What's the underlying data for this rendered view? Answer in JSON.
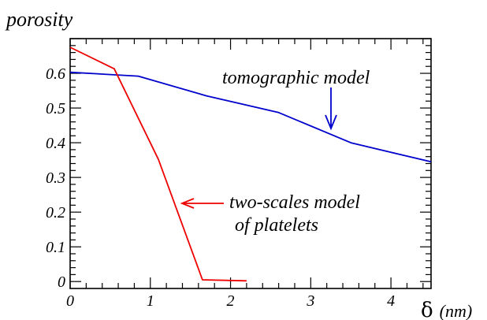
{
  "chart_data": {
    "type": "line",
    "ylabel": "porosity",
    "xlabel_symbol": "δ",
    "xlabel_unit": "(nm)",
    "xlim": [
      0,
      4.5
    ],
    "ylim": [
      -0.02,
      0.7
    ],
    "x_ticks": [
      0,
      1,
      2,
      3,
      4
    ],
    "x_tick_labels": [
      "0",
      "1",
      "2",
      "3",
      "4"
    ],
    "y_ticks": [
      0,
      0.1,
      0.2,
      0.3,
      0.4,
      0.5,
      0.6
    ],
    "y_tick_labels": [
      "0",
      "0.1",
      "0.2",
      "0.3",
      "0.4",
      "0.5",
      "0.6"
    ],
    "grid": false,
    "series": [
      {
        "name": "tomographic model",
        "color": "#0000cc",
        "x": [
          0,
          0.85,
          1.7,
          2.6,
          3.5,
          4.5
        ],
        "y": [
          0.603,
          0.592,
          0.535,
          0.487,
          0.4,
          0.345
        ]
      },
      {
        "name": "two-scales model of platelets",
        "color": "#ee0000",
        "x": [
          0,
          0.55,
          1.1,
          1.65,
          2.2
        ],
        "y": [
          0.675,
          0.613,
          0.352,
          0.005,
          0.002
        ]
      }
    ],
    "annotations": [
      {
        "lines": [
          "tomographic model"
        ],
        "color": "#0000cc",
        "arrow": "down"
      },
      {
        "lines": [
          "two-scales model",
          "of platelets"
        ],
        "color": "#ee0000",
        "arrow": "left"
      }
    ]
  }
}
